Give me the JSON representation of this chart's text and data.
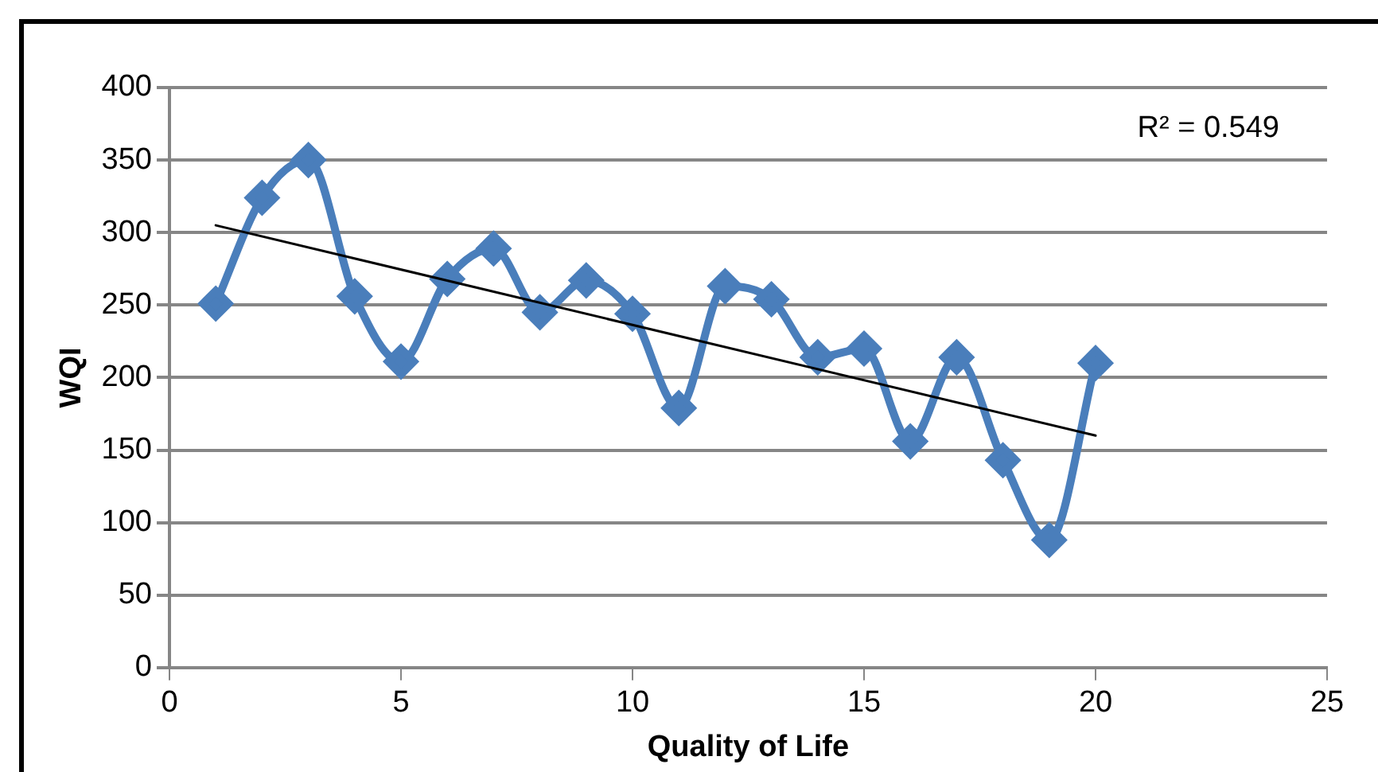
{
  "chart_data": {
    "type": "line",
    "xlabel": "Quality of Life",
    "ylabel": "WQI",
    "x": [
      1,
      2,
      3,
      4,
      5,
      6,
      7,
      8,
      9,
      10,
      11,
      12,
      13,
      14,
      15,
      16,
      17,
      18,
      19,
      20
    ],
    "series": [
      {
        "color": "#4a7ebb",
        "marker": "diamond",
        "values": [
          251,
          324,
          350,
          256,
          211,
          268,
          289,
          245,
          267,
          244,
          179,
          263,
          254,
          214,
          220,
          156,
          214,
          143,
          88,
          210
        ]
      },
      {
        "type": "line",
        "color": "#000000",
        "marker": "none",
        "x": [
          1,
          20
        ],
        "values": [
          305,
          160
        ]
      }
    ],
    "xlim": [
      0,
      25
    ],
    "xticks": [
      0,
      5,
      10,
      15,
      20,
      25
    ],
    "ylim": [
      0,
      400
    ],
    "yticks": [
      0,
      50,
      100,
      150,
      200,
      250,
      300,
      350,
      400
    ],
    "grid": "y",
    "legend": false,
    "annotations": [
      "R² = 0.549"
    ]
  }
}
